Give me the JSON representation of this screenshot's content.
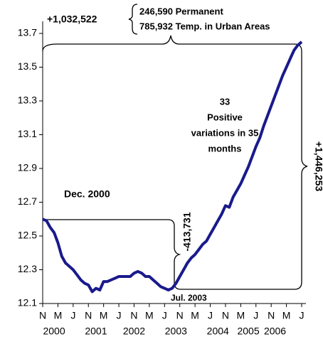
{
  "chart_data": {
    "type": "line",
    "categories": [
      "N",
      null,
      null,
      null,
      "M",
      null,
      null,
      null,
      "J",
      null,
      null,
      null,
      "N",
      null,
      null,
      null,
      "M",
      null,
      null,
      null,
      "J",
      null,
      null,
      null,
      "N",
      null,
      null,
      null,
      "M",
      null,
      null,
      null,
      "J",
      null,
      null,
      null,
      "N",
      null,
      null,
      null,
      "M",
      null,
      null,
      null,
      "J",
      null,
      null,
      null,
      "N",
      null,
      null,
      null,
      "M",
      null,
      null,
      null,
      "J",
      null,
      null,
      null,
      "N",
      null,
      null,
      null,
      "M",
      null,
      null,
      null,
      "J"
    ],
    "year_labels": [
      null,
      null,
      null,
      "2000",
      null,
      null,
      null,
      null,
      null,
      null,
      null,
      null,
      null,
      null,
      "2001",
      null,
      null,
      null,
      null,
      null,
      null,
      null,
      null,
      null,
      "2002",
      null,
      null,
      null,
      null,
      null,
      null,
      null,
      null,
      null,
      null,
      "2003",
      null,
      null,
      null,
      null,
      null,
      null,
      null,
      null,
      null,
      null,
      "2004",
      null,
      null,
      null,
      null,
      null,
      null,
      null,
      "2005",
      null,
      null,
      null,
      null,
      null,
      null,
      "2006",
      null,
      null,
      null,
      null,
      null,
      null,
      null,
      null
    ],
    "series": [
      {
        "color": "#1a1a8c",
        "values": [
          12.6,
          12.59,
          12.55,
          12.52,
          12.46,
          12.38,
          12.34,
          12.32,
          12.3,
          12.27,
          12.24,
          12.22,
          12.21,
          12.17,
          12.19,
          12.18,
          12.23,
          12.23,
          12.24,
          12.25,
          12.26,
          12.26,
          12.26,
          12.26,
          12.28,
          12.29,
          12.28,
          12.26,
          12.26,
          12.24,
          12.22,
          12.2,
          12.19,
          12.18,
          12.19,
          12.22,
          12.26,
          12.3,
          12.34,
          12.37,
          12.39,
          12.42,
          12.45,
          12.47,
          12.51,
          12.55,
          12.59,
          12.63,
          12.68,
          12.67,
          12.73,
          12.77,
          12.81,
          12.86,
          12.91,
          12.97,
          13.03,
          13.08,
          13.15,
          13.21,
          13.27,
          13.33,
          13.39,
          13.45,
          13.5,
          13.55,
          13.6,
          13.63,
          13.65
        ]
      }
    ],
    "ylim": [
      12.1,
      13.8
    ],
    "yticks": [
      12.1,
      12.3,
      12.5,
      12.7,
      12.9,
      13.1,
      13.3,
      13.5,
      13.7
    ],
    "annotations": {
      "total_top": "+1,032,522",
      "permanent": "246,590  Permanent",
      "temporary": "785,932 Temp. in Urban Areas",
      "count": "33",
      "positive": "Positive",
      "variations": "variations in 35",
      "months": "months",
      "total_right": "+1,446,253",
      "drop": "-413,731",
      "start": "Dec. 2000",
      "trough": "Jul. 2003"
    }
  }
}
